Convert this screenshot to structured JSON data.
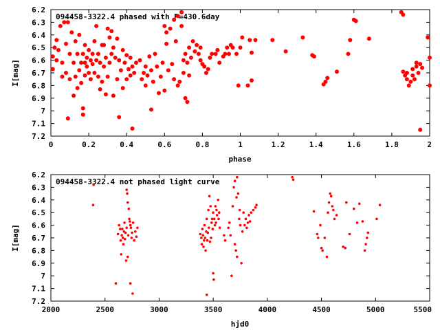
{
  "colors": {
    "points": "#ff0000",
    "axes": "#000000",
    "background": "#ffffff"
  },
  "chart_data": [
    {
      "type": "scatter",
      "title": "094458-3322.4 phased with P=430.6day",
      "xlabel": "phase",
      "ylabel": "I[mag]",
      "xlim": [
        0,
        2
      ],
      "ylim": [
        6.2,
        7.2
      ],
      "y_inverted": true,
      "grid": false,
      "x_ticks": [
        "0",
        "0.2",
        "0.4",
        "0.6",
        "0.8",
        "1",
        "1.2",
        "1.4",
        "1.6",
        "1.8",
        "2"
      ],
      "y_ticks": [
        "6.2",
        "6.3",
        "6.4",
        "6.5",
        "6.6",
        "6.7",
        "6.8",
        "6.9",
        "7",
        "7.1",
        "7.2"
      ],
      "marker": "filled-dot-large",
      "points": [
        [
          0.01,
          6.57
        ],
        [
          0.01,
          6.67
        ],
        [
          0.02,
          6.5
        ],
        [
          0.03,
          6.44
        ],
        [
          0.03,
          6.6
        ],
        [
          0.04,
          6.52
        ],
        [
          0.05,
          6.33
        ],
        [
          0.06,
          6.73
        ],
        [
          0.06,
          6.62
        ],
        [
          0.07,
          6.3
        ],
        [
          0.08,
          6.47
        ],
        [
          0.08,
          6.7
        ],
        [
          0.09,
          6.3
        ],
        [
          0.09,
          7.06
        ],
        [
          0.1,
          6.55
        ],
        [
          0.1,
          6.75
        ],
        [
          0.11,
          6.38
        ],
        [
          0.12,
          6.62
        ],
        [
          0.12,
          6.88
        ],
        [
          0.13,
          6.45
        ],
        [
          0.13,
          6.73
        ],
        [
          0.14,
          6.55
        ],
        [
          0.14,
          6.82
        ],
        [
          0.15,
          6.68
        ],
        [
          0.15,
          6.4
        ],
        [
          0.16,
          6.62
        ],
        [
          0.16,
          6.78
        ],
        [
          0.17,
          6.55
        ],
        [
          0.17,
          6.98
        ],
        [
          0.17,
          7.03
        ],
        [
          0.18,
          6.62
        ],
        [
          0.18,
          6.48
        ],
        [
          0.18,
          6.72
        ],
        [
          0.19,
          6.58
        ],
        [
          0.19,
          6.65
        ],
        [
          0.2,
          6.52
        ],
        [
          0.2,
          6.7
        ],
        [
          0.21,
          6.6
        ],
        [
          0.21,
          6.75
        ],
        [
          0.22,
          6.55
        ],
        [
          0.22,
          6.63
        ],
        [
          0.23,
          6.7
        ],
        [
          0.23,
          6.45
        ],
        [
          0.24,
          6.6
        ],
        [
          0.24,
          6.33
        ],
        [
          0.25,
          6.55
        ],
        [
          0.25,
          6.73
        ],
        [
          0.26,
          6.62
        ],
        [
          0.26,
          6.83
        ],
        [
          0.27,
          6.48
        ],
        [
          0.27,
          6.77
        ],
        [
          0.28,
          6.65
        ],
        [
          0.28,
          6.48
        ],
        [
          0.29,
          6.58
        ],
        [
          0.29,
          6.87
        ],
        [
          0.3,
          6.35
        ],
        [
          0.3,
          6.73
        ],
        [
          0.31,
          6.42
        ],
        [
          0.31,
          6.62
        ],
        [
          0.32,
          6.55
        ],
        [
          0.32,
          6.37
        ],
        [
          0.33,
          6.88
        ],
        [
          0.33,
          6.5
        ],
        [
          0.34,
          6.58
        ],
        [
          0.35,
          6.43
        ],
        [
          0.35,
          6.75
        ],
        [
          0.36,
          6.6
        ],
        [
          0.36,
          7.05
        ],
        [
          0.37,
          6.68
        ],
        [
          0.38,
          6.52
        ],
        [
          0.38,
          6.82
        ],
        [
          0.39,
          6.62
        ],
        [
          0.4,
          6.75
        ],
        [
          0.4,
          6.56
        ],
        [
          0.41,
          6.67
        ],
        [
          0.42,
          6.72
        ],
        [
          0.42,
          6.58
        ],
        [
          0.43,
          6.65
        ],
        [
          0.43,
          7.14
        ],
        [
          0.44,
          6.7
        ],
        [
          0.45,
          6.62
        ],
        [
          0.47,
          6.6
        ],
        [
          0.48,
          6.75
        ],
        [
          0.49,
          6.7
        ],
        [
          0.5,
          6.65
        ],
        [
          0.5,
          6.8
        ],
        [
          0.51,
          6.72
        ],
        [
          0.52,
          6.57
        ],
        [
          0.53,
          6.68
        ],
        [
          0.53,
          6.99
        ],
        [
          0.54,
          6.77
        ],
        [
          0.55,
          6.55
        ],
        [
          0.56,
          6.65
        ],
        [
          0.57,
          6.86
        ],
        [
          0.58,
          6.73
        ],
        [
          0.59,
          6.62
        ],
        [
          0.6,
          6.33
        ],
        [
          0.6,
          6.84
        ],
        [
          0.61,
          6.47
        ],
        [
          0.61,
          6.38
        ],
        [
          0.62,
          6.68
        ],
        [
          0.63,
          6.35
        ],
        [
          0.64,
          6.63
        ],
        [
          0.65,
          6.28
        ],
        [
          0.65,
          6.75
        ],
        [
          0.66,
          6.45
        ],
        [
          0.67,
          6.8
        ],
        [
          0.67,
          6.25
        ],
        [
          0.68,
          6.77
        ],
        [
          0.69,
          6.33
        ],
        [
          0.69,
          6.22
        ],
        [
          0.7,
          6.6
        ],
        [
          0.7,
          6.7
        ],
        [
          0.71,
          6.55
        ],
        [
          0.71,
          6.9
        ],
        [
          0.72,
          6.62
        ],
        [
          0.72,
          6.93
        ],
        [
          0.73,
          6.5
        ],
        [
          0.73,
          6.72
        ],
        [
          0.74,
          6.58
        ],
        [
          0.75,
          6.45
        ],
        [
          0.76,
          6.53
        ],
        [
          0.77,
          6.48
        ],
        [
          0.78,
          6.55
        ],
        [
          0.79,
          6.5
        ],
        [
          0.79,
          6.6
        ],
        [
          0.8,
          6.63
        ],
        [
          0.81,
          6.65
        ],
        [
          0.82,
          6.7
        ],
        [
          0.83,
          6.67
        ],
        [
          0.84,
          6.58
        ],
        [
          0.85,
          6.55
        ],
        [
          0.87,
          6.55
        ],
        [
          0.88,
          6.52
        ],
        [
          0.89,
          6.62
        ],
        [
          0.91,
          6.57
        ],
        [
          0.92,
          6.55
        ],
        [
          0.93,
          6.5
        ],
        [
          0.94,
          6.55
        ],
        [
          0.95,
          6.48
        ],
        [
          0.96,
          6.5
        ],
        [
          0.98,
          6.55
        ],
        [
          0.99,
          6.8
        ],
        [
          1.0,
          6.5
        ],
        [
          1.01,
          6.42
        ],
        [
          1.04,
          6.8
        ],
        [
          1.05,
          6.44
        ],
        [
          1.06,
          6.54
        ],
        [
          1.06,
          6.76
        ],
        [
          1.08,
          6.44
        ],
        [
          1.17,
          6.44
        ],
        [
          1.24,
          6.53
        ],
        [
          1.33,
          6.42
        ],
        [
          1.38,
          6.56
        ],
        [
          1.39,
          6.57
        ],
        [
          1.44,
          6.79
        ],
        [
          1.45,
          6.77
        ],
        [
          1.46,
          6.74
        ],
        [
          1.51,
          6.69
        ],
        [
          1.57,
          6.55
        ],
        [
          1.58,
          6.44
        ],
        [
          1.6,
          6.28
        ],
        [
          1.61,
          6.29
        ],
        [
          1.68,
          6.43
        ],
        [
          1.85,
          6.22
        ],
        [
          1.86,
          6.24
        ],
        [
          1.86,
          6.69
        ],
        [
          1.87,
          6.72
        ],
        [
          1.88,
          6.7
        ],
        [
          1.88,
          6.75
        ],
        [
          1.89,
          6.8
        ],
        [
          1.9,
          6.77
        ],
        [
          1.91,
          6.72
        ],
        [
          1.91,
          6.67
        ],
        [
          1.92,
          6.75
        ],
        [
          1.93,
          6.65
        ],
        [
          1.93,
          6.62
        ],
        [
          1.94,
          6.7
        ],
        [
          1.95,
          6.63
        ],
        [
          1.96,
          6.66
        ],
        [
          1.95,
          7.15
        ],
        [
          1.99,
          6.42
        ],
        [
          2.0,
          6.58
        ],
        [
          2.0,
          6.8
        ]
      ]
    },
    {
      "type": "scatter",
      "title": "094458-3322.4 not phased light curve",
      "xlabel": "hjd0",
      "ylabel": "I[mag]",
      "xlim": [
        2000,
        5500
      ],
      "ylim": [
        6.2,
        7.2
      ],
      "y_inverted": true,
      "grid": false,
      "x_ticks": [
        "2000",
        "2500",
        "3000",
        "3500",
        "4000",
        "4500",
        "5000",
        "5500"
      ],
      "y_ticks": [
        "6.2",
        "6.3",
        "6.4",
        "6.5",
        "6.6",
        "6.7",
        "6.8",
        "6.9",
        "7",
        "7.1",
        "7.2"
      ],
      "marker": "dot-small",
      "points": [
        [
          2390,
          6.44
        ],
        [
          2395,
          6.28
        ],
        [
          2600,
          7.06
        ],
        [
          2620,
          6.67
        ],
        [
          2630,
          6.6
        ],
        [
          2640,
          6.63
        ],
        [
          2645,
          6.72
        ],
        [
          2650,
          6.83
        ],
        [
          2655,
          6.68
        ],
        [
          2660,
          6.63
        ],
        [
          2665,
          6.7
        ],
        [
          2670,
          6.75
        ],
        [
          2675,
          6.65
        ],
        [
          2680,
          6.58
        ],
        [
          2685,
          6.71
        ],
        [
          2690,
          6.66
        ],
        [
          2695,
          6.88
        ],
        [
          2700,
          6.32
        ],
        [
          2700,
          6.62
        ],
        [
          2705,
          6.35
        ],
        [
          2710,
          6.85
        ],
        [
          2710,
          6.42
        ],
        [
          2715,
          6.68
        ],
        [
          2720,
          6.47
        ],
        [
          2725,
          6.55
        ],
        [
          2730,
          6.57
        ],
        [
          2735,
          7.06
        ],
        [
          2735,
          6.6
        ],
        [
          2740,
          6.62
        ],
        [
          2745,
          6.7
        ],
        [
          2750,
          6.66
        ],
        [
          2755,
          7.14
        ],
        [
          2760,
          6.58
        ],
        [
          2770,
          6.72
        ],
        [
          2780,
          6.65
        ],
        [
          2790,
          6.69
        ],
        [
          2800,
          6.62
        ],
        [
          3380,
          6.67
        ],
        [
          3390,
          6.7
        ],
        [
          3395,
          6.75
        ],
        [
          3400,
          6.63
        ],
        [
          3405,
          6.68
        ],
        [
          3410,
          6.77
        ],
        [
          3415,
          6.72
        ],
        [
          3420,
          6.6
        ],
        [
          3425,
          6.7
        ],
        [
          3430,
          6.8
        ],
        [
          3435,
          6.65
        ],
        [
          3440,
          6.55
        ],
        [
          3440,
          7.15
        ],
        [
          3445,
          6.72
        ],
        [
          3450,
          6.66
        ],
        [
          3455,
          6.48
        ],
        [
          3460,
          6.62
        ],
        [
          3465,
          6.37
        ],
        [
          3470,
          6.73
        ],
        [
          3475,
          6.45
        ],
        [
          3480,
          6.7
        ],
        [
          3485,
          6.58
        ],
        [
          3490,
          6.55
        ],
        [
          3495,
          6.63
        ],
        [
          3500,
          6.5
        ],
        [
          3500,
          6.98
        ],
        [
          3505,
          7.03
        ],
        [
          3510,
          6.55
        ],
        [
          3515,
          6.6
        ],
        [
          3520,
          6.45
        ],
        [
          3525,
          6.58
        ],
        [
          3530,
          6.48
        ],
        [
          3535,
          6.52
        ],
        [
          3545,
          6.4
        ],
        [
          3550,
          6.55
        ],
        [
          3555,
          6.5
        ],
        [
          3560,
          6.62
        ],
        [
          3600,
          6.68
        ],
        [
          3610,
          6.72
        ],
        [
          3640,
          6.62
        ],
        [
          3650,
          6.58
        ],
        [
          3660,
          6.68
        ],
        [
          3670,
          7.0
        ],
        [
          3680,
          6.45
        ],
        [
          3690,
          6.3
        ],
        [
          3700,
          6.25
        ],
        [
          3700,
          6.75
        ],
        [
          3710,
          6.8
        ],
        [
          3715,
          6.38
        ],
        [
          3720,
          6.22
        ],
        [
          3720,
          6.85
        ],
        [
          3730,
          6.35
        ],
        [
          3740,
          6.55
        ],
        [
          3745,
          6.48
        ],
        [
          3750,
          6.6
        ],
        [
          3760,
          6.9
        ],
        [
          3770,
          6.65
        ],
        [
          3780,
          6.5
        ],
        [
          3790,
          6.6
        ],
        [
          3800,
          6.55
        ],
        [
          3810,
          6.62
        ],
        [
          3820,
          6.58
        ],
        [
          3830,
          6.52
        ],
        [
          3840,
          6.57
        ],
        [
          3850,
          6.5
        ],
        [
          3870,
          6.48
        ],
        [
          3890,
          6.46
        ],
        [
          3900,
          6.44
        ],
        [
          4230,
          6.22
        ],
        [
          4240,
          6.24
        ],
        [
          4430,
          6.49
        ],
        [
          4460,
          6.67
        ],
        [
          4470,
          6.7
        ],
        [
          4490,
          6.6
        ],
        [
          4500,
          6.78
        ],
        [
          4510,
          6.8
        ],
        [
          4530,
          6.7
        ],
        [
          4550,
          6.85
        ],
        [
          4560,
          6.5
        ],
        [
          4570,
          6.42
        ],
        [
          4580,
          6.35
        ],
        [
          4590,
          6.37
        ],
        [
          4600,
          6.45
        ],
        [
          4610,
          6.48
        ],
        [
          4620,
          6.55
        ],
        [
          4640,
          6.52
        ],
        [
          4700,
          6.77
        ],
        [
          4720,
          6.78
        ],
        [
          4730,
          6.42
        ],
        [
          4760,
          6.67
        ],
        [
          4800,
          6.47
        ],
        [
          4830,
          6.58
        ],
        [
          4850,
          6.43
        ],
        [
          4880,
          6.57
        ],
        [
          4900,
          6.8
        ],
        [
          4910,
          6.75
        ],
        [
          4920,
          6.7
        ],
        [
          4930,
          6.66
        ],
        [
          5010,
          6.55
        ],
        [
          5040,
          6.44
        ]
      ]
    }
  ]
}
